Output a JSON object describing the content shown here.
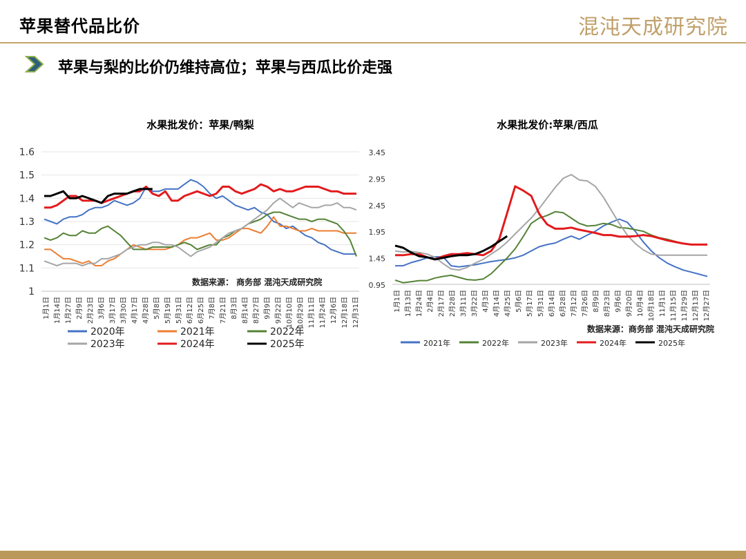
{
  "header": {
    "title": "苹果替代品比价",
    "logo_text": "混沌天成研究院",
    "subtitle": "苹果与梨的比价仍维持高位；苹果与西瓜比价走强"
  },
  "chart_data": [
    {
      "type": "line",
      "title": "水果批发价：苹果/鸭梨",
      "source_note": "数据来源：  商务部  混沌天成研究院",
      "ylim": [
        1,
        1.6
      ],
      "yticks": [
        "1",
        "1.1",
        "1.2",
        "1.3",
        "1.4",
        "1.5",
        "1.6"
      ],
      "xticks": [
        "1月1日",
        "1月14日",
        "1月27日",
        "2月9日",
        "2月23日",
        "3月6日",
        "3月17日",
        "3月30日",
        "4月17日",
        "4月28日",
        "5月8日",
        "5月19日",
        "5月31日",
        "6月12日",
        "6月25日",
        "7月8日",
        "7月21日",
        "8月3日",
        "8月14日",
        "8月27日",
        "9月9日",
        "9月22日",
        "10月10日",
        "10月29日",
        "11月11日",
        "11月24日",
        "12月6日",
        "12月18日",
        "12月31日"
      ],
      "grid": true,
      "legend_position": "bottom",
      "series": [
        {
          "name": "2020年",
          "color": "#4472c4",
          "values": [
            1.31,
            1.3,
            1.29,
            1.31,
            1.32,
            1.32,
            1.33,
            1.35,
            1.36,
            1.36,
            1.37,
            1.39,
            1.38,
            1.37,
            1.38,
            1.4,
            1.45,
            1.43,
            1.43,
            1.44,
            1.44,
            1.44,
            1.46,
            1.48,
            1.47,
            1.45,
            1.42,
            1.4,
            1.41,
            1.39,
            1.37,
            1.36,
            1.35,
            1.36,
            1.34,
            1.33,
            1.3,
            1.29,
            1.27,
            1.28,
            1.26,
            1.24,
            1.23,
            1.21,
            1.2,
            1.18,
            1.17,
            1.16,
            1.16,
            1.16
          ]
        },
        {
          "name": "2021年",
          "color": "#ed7d31",
          "values": [
            1.18,
            1.18,
            1.16,
            1.14,
            1.14,
            1.13,
            1.12,
            1.13,
            1.11,
            1.11,
            1.13,
            1.14,
            1.16,
            1.18,
            1.2,
            1.19,
            1.18,
            1.18,
            1.18,
            1.18,
            1.19,
            1.2,
            1.22,
            1.23,
            1.23,
            1.24,
            1.25,
            1.22,
            1.22,
            1.23,
            1.25,
            1.27,
            1.27,
            1.26,
            1.25,
            1.28,
            1.32,
            1.28,
            1.28,
            1.27,
            1.26,
            1.26,
            1.27,
            1.26,
            1.26,
            1.26,
            1.26,
            1.25,
            1.25,
            1.25
          ]
        },
        {
          "name": "2022年",
          "color": "#548235",
          "values": [
            1.23,
            1.22,
            1.23,
            1.25,
            1.24,
            1.24,
            1.26,
            1.25,
            1.25,
            1.27,
            1.28,
            1.26,
            1.24,
            1.21,
            1.18,
            1.18,
            1.18,
            1.19,
            1.19,
            1.19,
            1.19,
            1.2,
            1.21,
            1.2,
            1.18,
            1.19,
            1.2,
            1.2,
            1.23,
            1.24,
            1.26,
            1.27,
            1.29,
            1.3,
            1.31,
            1.33,
            1.34,
            1.34,
            1.33,
            1.32,
            1.31,
            1.31,
            1.3,
            1.31,
            1.31,
            1.3,
            1.29,
            1.26,
            1.22,
            1.15
          ]
        },
        {
          "name": "2023年",
          "color": "#a5a5a5",
          "values": [
            1.13,
            1.12,
            1.11,
            1.12,
            1.12,
            1.12,
            1.11,
            1.12,
            1.12,
            1.14,
            1.14,
            1.15,
            1.16,
            1.18,
            1.19,
            1.2,
            1.2,
            1.21,
            1.21,
            1.2,
            1.2,
            1.19,
            1.17,
            1.15,
            1.17,
            1.18,
            1.19,
            1.21,
            1.23,
            1.25,
            1.26,
            1.27,
            1.29,
            1.31,
            1.33,
            1.35,
            1.38,
            1.4,
            1.38,
            1.36,
            1.38,
            1.37,
            1.36,
            1.36,
            1.37,
            1.37,
            1.38,
            1.36,
            1.36,
            1.35
          ]
        },
        {
          "name": "2024年",
          "color": "#e31a1c",
          "values": [
            1.36,
            1.36,
            1.37,
            1.39,
            1.41,
            1.41,
            1.39,
            1.39,
            1.39,
            1.38,
            1.39,
            1.4,
            1.41,
            1.42,
            1.43,
            1.43,
            1.45,
            1.42,
            1.41,
            1.43,
            1.39,
            1.39,
            1.41,
            1.42,
            1.43,
            1.42,
            1.41,
            1.42,
            1.45,
            1.45,
            1.43,
            1.42,
            1.43,
            1.44,
            1.46,
            1.45,
            1.43,
            1.44,
            1.43,
            1.43,
            1.44,
            1.45,
            1.45,
            1.45,
            1.44,
            1.43,
            1.43,
            1.42,
            1.42,
            1.42
          ]
        },
        {
          "name": "2025年",
          "color": "#000000",
          "values": [
            1.41,
            1.41,
            1.42,
            1.43,
            1.4,
            1.4,
            1.41,
            1.4,
            1.39,
            1.38,
            1.41,
            1.42,
            1.42,
            1.42,
            1.43,
            1.44,
            1.44,
            1.44,
            null,
            null,
            null,
            null,
            null,
            null,
            null,
            null,
            null,
            null,
            null,
            null,
            null,
            null,
            null,
            null,
            null,
            null,
            null,
            null,
            null,
            null,
            null,
            null,
            null,
            null,
            null,
            null,
            null,
            null,
            null,
            null
          ]
        }
      ]
    },
    {
      "type": "line",
      "title": "水果批发价:苹果/西瓜",
      "source_note": "数据来源：商务部  混沌天成研究院",
      "ylim": [
        0.95,
        3.45
      ],
      "yticks": [
        "0.95",
        "1.45",
        "1.95",
        "2.45",
        "2.95",
        "3.45"
      ],
      "xticks": [
        "1月1日",
        "1月13日",
        "1月24日",
        "2月4日",
        "2月17日",
        "2月28日",
        "3月11日",
        "3月22日",
        "4月3日",
        "4月14日",
        "4月25日",
        "5月6日",
        "5月17日",
        "5月31日",
        "6月14日",
        "6月28日",
        "7月12日",
        "7月26日",
        "8月9日",
        "8月23日",
        "9月6日",
        "9月20日",
        "10月4日",
        "10月18日",
        "11月1日",
        "11月15日",
        "11月29日",
        "12月13日",
        "12月27日"
      ],
      "grid": false,
      "legend_position": "bottom",
      "series": [
        {
          "name": "2021年",
          "color": "#4472c4",
          "values": [
            1.3,
            1.3,
            1.36,
            1.4,
            1.45,
            1.47,
            1.47,
            1.3,
            1.28,
            1.3,
            1.32,
            1.35,
            1.38,
            1.4,
            1.42,
            1.45,
            1.5,
            1.58,
            1.66,
            1.7,
            1.73,
            1.8,
            1.86,
            1.8,
            1.88,
            1.95,
            2.05,
            2.12,
            2.18,
            2.12,
            1.95,
            1.75,
            1.58,
            1.45,
            1.35,
            1.28,
            1.22,
            1.18,
            1.14,
            1.1
          ]
        },
        {
          "name": "2022年",
          "color": "#548235",
          "values": [
            1.03,
            0.98,
            1.0,
            1.02,
            1.02,
            1.07,
            1.1,
            1.12,
            1.08,
            1.04,
            1.03,
            1.05,
            1.15,
            1.3,
            1.45,
            1.62,
            1.85,
            2.1,
            2.2,
            2.25,
            2.32,
            2.3,
            2.2,
            2.1,
            2.05,
            2.06,
            2.1,
            2.08,
            2.02,
            2.01,
            1.98,
            1.95,
            1.88,
            1.83,
            1.8,
            1.76,
            1.72,
            1.7,
            1.7,
            1.7
          ]
        },
        {
          "name": "2023年",
          "color": "#a5a5a5",
          "values": [
            1.58,
            1.56,
            1.57,
            1.55,
            1.52,
            1.46,
            1.34,
            1.24,
            1.22,
            1.27,
            1.35,
            1.42,
            1.52,
            1.62,
            1.75,
            1.9,
            2.05,
            2.2,
            2.38,
            2.58,
            2.78,
            2.95,
            3.02,
            2.92,
            2.9,
            2.8,
            2.6,
            2.35,
            2.1,
            1.88,
            1.72,
            1.6,
            1.52,
            1.5,
            1.5,
            1.5,
            1.5,
            1.5,
            1.5,
            1.5
          ]
        },
        {
          "name": "2024年",
          "color": "#e31a1c",
          "values": [
            1.5,
            1.5,
            1.52,
            1.52,
            1.46,
            1.42,
            1.48,
            1.52,
            1.52,
            1.54,
            1.52,
            1.5,
            1.58,
            1.8,
            2.3,
            2.8,
            2.72,
            2.62,
            2.28,
            2.08,
            2.0,
            2.0,
            2.02,
            1.98,
            1.95,
            1.92,
            1.88,
            1.88,
            1.85,
            1.85,
            1.86,
            1.88,
            1.86,
            1.82,
            1.78,
            1.75,
            1.72,
            1.7,
            1.7,
            1.7
          ]
        },
        {
          "name": "2025年",
          "color": "#000000",
          "values": [
            1.68,
            1.64,
            1.55,
            1.48,
            1.46,
            1.42,
            1.45,
            1.48,
            1.5,
            1.5,
            1.52,
            1.58,
            1.66,
            1.76,
            1.86,
            null,
            null,
            null,
            null,
            null,
            null,
            null,
            null,
            null,
            null,
            null,
            null,
            null,
            null,
            null,
            null,
            null,
            null,
            null,
            null,
            null,
            null,
            null,
            null,
            null
          ]
        }
      ]
    }
  ]
}
